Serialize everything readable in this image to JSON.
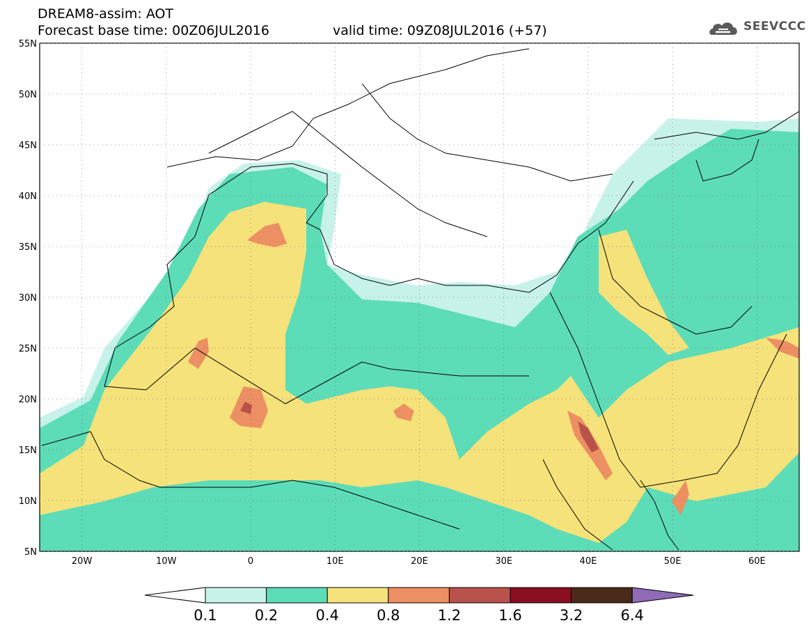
{
  "header": {
    "title_line1": "DREAM8-assim: AOT",
    "title_line2": "Forecast base time: 00Z06JUL2016",
    "valid_time": "valid time: 09Z08JUL2016 (+57)",
    "logo_text": "SEEVCCC"
  },
  "map": {
    "projection": "equirectangular",
    "lon_range": [
      -25,
      65
    ],
    "lat_range": [
      5,
      55
    ],
    "lat_ticks": [
      "5N",
      "10N",
      "15N",
      "20N",
      "25N",
      "30N",
      "35N",
      "40N",
      "45N",
      "50N",
      "55N"
    ],
    "lon_ticks": [
      "20W",
      "10W",
      "0",
      "10E",
      "20E",
      "30E",
      "40E",
      "50E",
      "60E"
    ],
    "grid": "dotted",
    "ocean_color": "#ffffff",
    "coastline_color": "#000000"
  },
  "legend": {
    "bins": [
      {
        "label": "0.1",
        "color": "#c7f2ea"
      },
      {
        "label": "0.2",
        "color": "#5ddcb8"
      },
      {
        "label": "0.4",
        "color": "#f6e27a"
      },
      {
        "label": "0.8",
        "color": "#ec8f62"
      },
      {
        "label": "1.2",
        "color": "#b8524a"
      },
      {
        "label": "1.6",
        "color": "#8a0f1f"
      },
      {
        "label": "3.2",
        "color": "#4a2a18"
      },
      {
        "label": "6.4",
        "color": "#8f6bb8"
      }
    ],
    "below_color": "#ffffff",
    "above_color": "#8f6bb8"
  }
}
